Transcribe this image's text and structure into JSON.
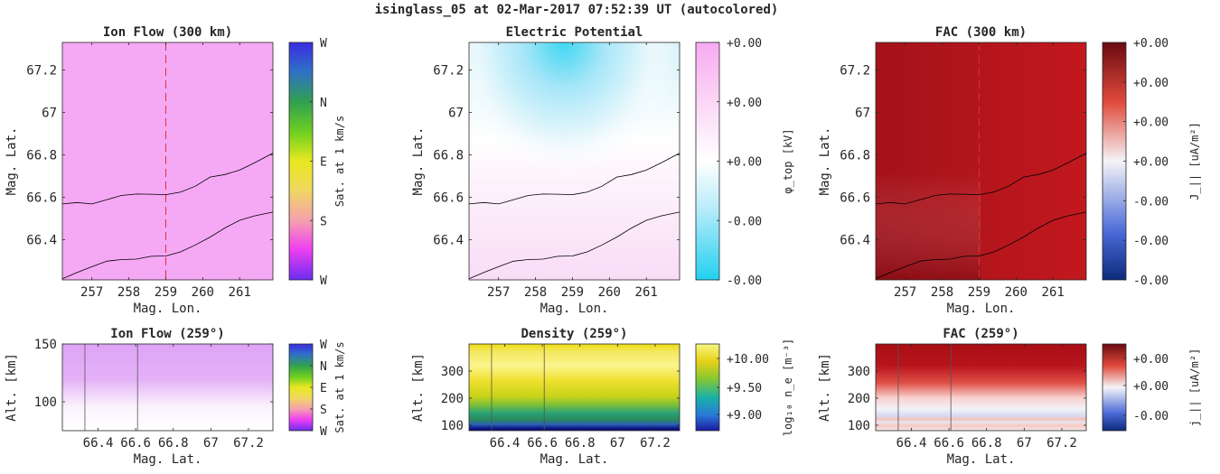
{
  "figure_title": "isinglass_05 at 02-Mar-2017 07:52:39 UT (autocolored)",
  "colors": {
    "ion_flow_fill": "#f5a9f5",
    "fac_fill": "#b8141c",
    "boundary_line": "#000000",
    "cut_line": "#e0322c"
  },
  "colorbars": {
    "sat": {
      "scheme": "sat-hue-wheel",
      "ticks": [
        "W",
        "N",
        "E",
        "S",
        "W"
      ],
      "label": "Sat. at 1 km/s"
    },
    "phi": {
      "scheme": "cyan-white-pink",
      "ticks": [
        "+0.00",
        "+0.00",
        "+0.00",
        "-0.00",
        "-0.00"
      ],
      "label": "φ_top [kV]"
    },
    "fac": {
      "scheme": "blue-white-red",
      "ticks": [
        "+0.00",
        "+0.00",
        "+0.00",
        "+0.00",
        "-0.00",
        "-0.00",
        "-0.00"
      ],
      "label": "J_|| [uA/m²]"
    },
    "fac_small": {
      "scheme": "blue-white-red",
      "ticks": [
        "+0.00",
        "+0.00",
        "-0.00"
      ],
      "label": "j_|| [uA/m²]"
    },
    "dens": {
      "scheme": "parula",
      "ticks": [
        "+10.00",
        "+9.50",
        "+9.00"
      ],
      "label": "log₁₀ n_e [m⁻³]"
    }
  },
  "chart_data": [
    {
      "type": "heatmap",
      "title": "Ion Flow (300 km)",
      "xlabel": "Mag. Lon.",
      "ylabel": "Mag. Lat.",
      "xlim": [
        256.2,
        261.9
      ],
      "ylim": [
        66.21,
        67.33
      ],
      "xticks": [
        "257",
        "258",
        "259",
        "260",
        "261"
      ],
      "yticks": [
        "66.4",
        "66.6",
        "66.8",
        "67",
        "67.2"
      ],
      "field": "uniform",
      "cut_lon": 259,
      "boundaries": "lat-boundaries",
      "colorbar": "sat"
    },
    {
      "type": "heatmap",
      "title": "Electric Potential",
      "xlabel": "Mag. Lon.",
      "ylabel": "Mag. Lat.",
      "xlim": [
        256.2,
        261.9
      ],
      "ylim": [
        66.21,
        67.33
      ],
      "xticks": [
        "257",
        "258",
        "259",
        "260",
        "261"
      ],
      "yticks": [
        "66.4",
        "66.6",
        "66.8",
        "67",
        "67.2"
      ],
      "field": "potential",
      "boundaries": "lat-boundaries",
      "colorbar": "phi"
    },
    {
      "type": "heatmap",
      "title": "FAC (300 km)",
      "xlabel": "Mag. Lon.",
      "ylabel": "Mag. Lat.",
      "xlim": [
        256.2,
        261.9
      ],
      "ylim": [
        66.21,
        67.33
      ],
      "xticks": [
        "257",
        "258",
        "259",
        "260",
        "261"
      ],
      "yticks": [
        "66.4",
        "66.6",
        "66.8",
        "67",
        "67.2"
      ],
      "field": "fac-gradient",
      "cut_lon": 259,
      "boundaries": "lat-boundaries",
      "colorbar": "fac"
    },
    {
      "type": "heatmap",
      "title": "Ion Flow (259°)",
      "xlabel": "Mag. Lat.",
      "ylabel": "Alt. [km]",
      "xlim": [
        66.21,
        67.33
      ],
      "ylim": [
        75,
        150
      ],
      "xticks": [
        "66.4",
        "66.6",
        "66.8",
        "67",
        "67.2"
      ],
      "yticks": [
        "100",
        "150"
      ],
      "field": "ion-alt",
      "vlines": [
        66.33,
        66.61
      ],
      "colorbar": "sat"
    },
    {
      "type": "heatmap",
      "title": "Density (259°)",
      "xlabel": "Mag. Lat.",
      "ylabel": "Alt. [km]",
      "xlim": [
        66.21,
        67.33
      ],
      "ylim": [
        80,
        400
      ],
      "xticks": [
        "66.4",
        "66.6",
        "66.8",
        "67",
        "67.2"
      ],
      "yticks": [
        "100",
        "200",
        "300"
      ],
      "field": "density-alt",
      "vlines": [
        66.33,
        66.61
      ],
      "colorbar": "dens"
    },
    {
      "type": "heatmap",
      "title": "FAC (259°)",
      "xlabel": "Mag. Lat.",
      "ylabel": "Alt. [km]",
      "xlim": [
        66.21,
        67.33
      ],
      "ylim": [
        80,
        400
      ],
      "xticks": [
        "66.4",
        "66.6",
        "66.8",
        "67",
        "67.2"
      ],
      "yticks": [
        "100",
        "200",
        "300"
      ],
      "field": "fac-alt",
      "vlines": [
        66.33,
        66.61
      ],
      "colorbar": "fac_small"
    }
  ],
  "lat-boundaries": {
    "upper": {
      "lon": [
        256.2,
        256.6,
        257.0,
        257.4,
        257.8,
        258.2,
        258.6,
        259.0,
        259.4,
        259.8,
        260.2,
        260.6,
        261.0,
        261.4,
        261.9
      ],
      "lat": [
        66.568,
        66.575,
        66.568,
        66.588,
        66.608,
        66.615,
        66.614,
        66.612,
        66.624,
        66.652,
        66.695,
        66.707,
        66.728,
        66.762,
        66.808
      ]
    },
    "lower": {
      "lon": [
        256.2,
        256.6,
        257.0,
        257.4,
        257.8,
        258.2,
        258.6,
        259.0,
        259.4,
        259.8,
        260.2,
        260.6,
        261.0,
        261.4,
        261.9
      ],
      "lat": [
        66.215,
        66.245,
        66.272,
        66.298,
        66.306,
        66.308,
        66.321,
        66.323,
        66.342,
        66.375,
        66.412,
        66.455,
        66.491,
        66.512,
        66.53
      ]
    }
  }
}
